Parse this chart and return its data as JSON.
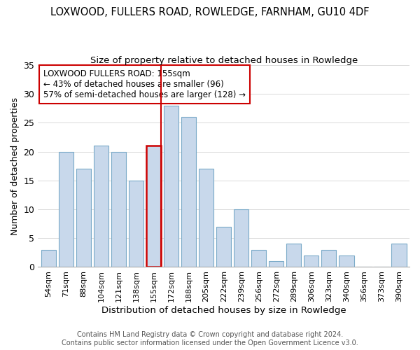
{
  "title": "LOXWOOD, FULLERS ROAD, ROWLEDGE, FARNHAM, GU10 4DF",
  "subtitle": "Size of property relative to detached houses in Rowledge",
  "xlabel": "Distribution of detached houses by size in Rowledge",
  "ylabel": "Number of detached properties",
  "bar_labels": [
    "54sqm",
    "71sqm",
    "88sqm",
    "104sqm",
    "121sqm",
    "138sqm",
    "155sqm",
    "172sqm",
    "188sqm",
    "205sqm",
    "222sqm",
    "239sqm",
    "256sqm",
    "272sqm",
    "289sqm",
    "306sqm",
    "323sqm",
    "340sqm",
    "356sqm",
    "373sqm",
    "390sqm"
  ],
  "bar_values": [
    3,
    20,
    17,
    21,
    20,
    15,
    21,
    28,
    26,
    17,
    7,
    10,
    3,
    1,
    4,
    2,
    3,
    2,
    0,
    0,
    4
  ],
  "bar_color": "#c8d8eb",
  "bar_edgecolor": "#7aaac8",
  "highlight_index": 6,
  "highlight_line_color": "#cc0000",
  "ylim": [
    0,
    35
  ],
  "yticks": [
    0,
    5,
    10,
    15,
    20,
    25,
    30,
    35
  ],
  "annotation_title": "LOXWOOD FULLERS ROAD: 155sqm",
  "annotation_line1": "← 43% of detached houses are smaller (96)",
  "annotation_line2": "57% of semi-detached houses are larger (128) →",
  "footer1": "Contains HM Land Registry data © Crown copyright and database right 2024.",
  "footer2": "Contains public sector information licensed under the Open Government Licence v3.0.",
  "title_fontsize": 10.5,
  "subtitle_fontsize": 9.5,
  "annotation_box_edgecolor": "#cc0000",
  "background_color": "#ffffff"
}
